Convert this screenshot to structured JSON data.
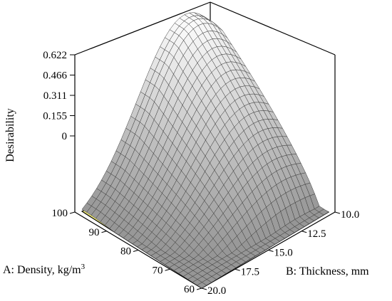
{
  "chart_data": {
    "type": "surface3d",
    "zlabel": "Desirability",
    "xlabel_parts": {
      "prefix": "A: Density, kg/m",
      "superscript": "3"
    },
    "ylabel": "B: Thickness, mm",
    "z_ticks": [
      "0.622",
      "0.466",
      "0.311",
      "0.155",
      "0"
    ],
    "density_ticks": [
      "100",
      "90",
      "80",
      "70",
      "60"
    ],
    "thickness_ticks": [
      "10.0",
      "12.5",
      "15.0",
      "17.5",
      "20.0"
    ],
    "density_range": [
      60,
      100
    ],
    "thickness_range": [
      10,
      20
    ],
    "z_range": [
      0,
      0.622
    ],
    "surface_color": "#9a9a9a",
    "contour_floor_color": "#f7f27a",
    "contour_line_color": "#8a8a8a"
  }
}
